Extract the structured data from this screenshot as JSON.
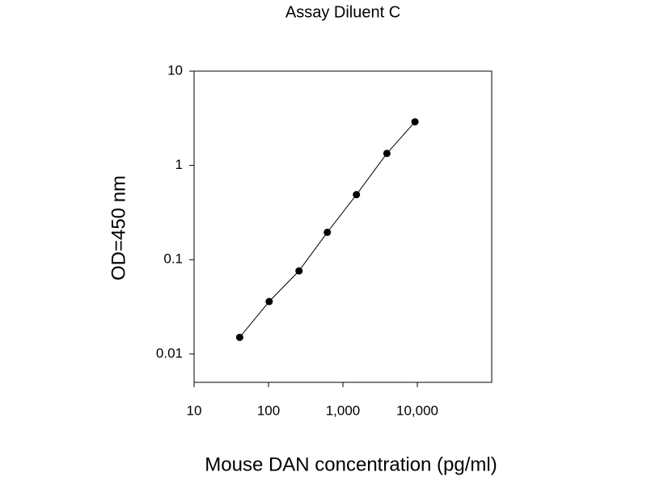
{
  "chart_data": {
    "type": "line",
    "title": "Assay Diluent C",
    "x_label": "Mouse DAN concentration (pg/ml)",
    "y_label": "OD=450 nm",
    "x": [
      41,
      102,
      257,
      617,
      1520,
      3900,
      9300
    ],
    "values": [
      0.015,
      0.036,
      0.076,
      0.195,
      0.49,
      1.34,
      2.9
    ],
    "color": "#000000",
    "marker": true,
    "x_log": true,
    "y_log": true,
    "xlim": [
      10,
      100000
    ],
    "ylim": [
      0.005,
      10
    ],
    "xticks": [
      10,
      100,
      {
        "value": 1000,
        "label": "1,000"
      },
      {
        "value": 10000,
        "label": "10,000"
      }
    ],
    "yticks": [
      0.01,
      0.1,
      1,
      10
    ]
  }
}
